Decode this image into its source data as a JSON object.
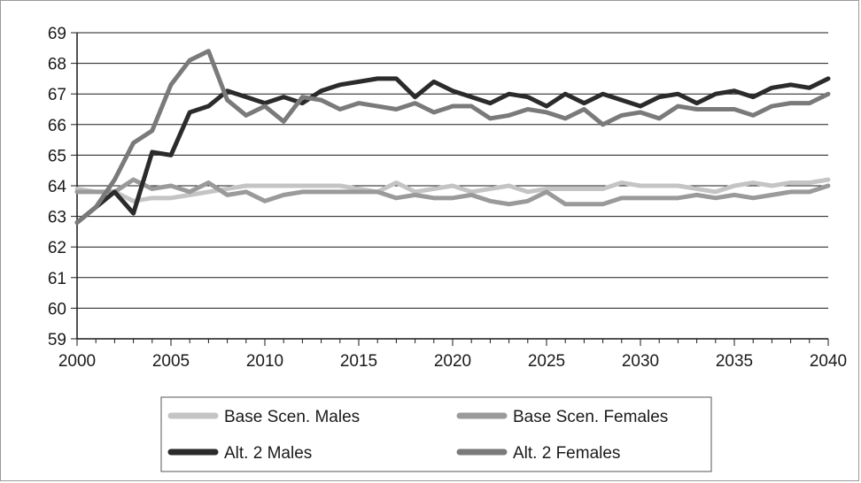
{
  "chart_data": {
    "type": "line",
    "title": "",
    "xlabel": "",
    "ylabel": "",
    "xlim": [
      2000,
      2040
    ],
    "ylim": [
      59,
      69
    ],
    "x_ticks": [
      2000,
      2005,
      2010,
      2015,
      2020,
      2025,
      2030,
      2035,
      2040
    ],
    "x_tick_labels": [
      "2000",
      "2005",
      "2010",
      "2015",
      "2020",
      "2025",
      "2030",
      "2035",
      "2040"
    ],
    "y_ticks": [
      59,
      60,
      61,
      62,
      63,
      64,
      65,
      66,
      67,
      68,
      69
    ],
    "y_tick_labels": [
      "59",
      "60",
      "61",
      "62",
      "63",
      "64",
      "65",
      "66",
      "67",
      "68",
      "69"
    ],
    "grid": "horizontal",
    "legend_position": "bottom",
    "x": [
      2000,
      2001,
      2002,
      2003,
      2004,
      2005,
      2006,
      2007,
      2008,
      2009,
      2010,
      2011,
      2012,
      2013,
      2014,
      2015,
      2016,
      2017,
      2018,
      2019,
      2020,
      2021,
      2022,
      2023,
      2024,
      2025,
      2026,
      2027,
      2028,
      2029,
      2030,
      2031,
      2032,
      2033,
      2034,
      2035,
      2036,
      2037,
      2038,
      2039,
      2040
    ],
    "series": [
      {
        "name": "Base Scen. Males",
        "color": "#c4c4c4",
        "values": [
          63.9,
          63.8,
          63.8,
          63.5,
          63.6,
          63.6,
          63.7,
          63.8,
          63.9,
          64.0,
          64.0,
          64.0,
          64.0,
          64.0,
          64.0,
          63.9,
          63.8,
          64.1,
          63.8,
          63.9,
          64.0,
          63.8,
          63.9,
          64.0,
          63.8,
          63.9,
          63.9,
          63.9,
          63.9,
          64.1,
          64.0,
          64.0,
          64.0,
          63.9,
          63.8,
          64.0,
          64.1,
          64.0,
          64.1,
          64.1,
          64.2
        ]
      },
      {
        "name": "Base Scen. Females",
        "color": "#9a9a9a",
        "values": [
          63.8,
          63.8,
          63.8,
          64.2,
          63.9,
          64.0,
          63.8,
          64.1,
          63.7,
          63.8,
          63.5,
          63.7,
          63.8,
          63.8,
          63.8,
          63.8,
          63.8,
          63.6,
          63.7,
          63.6,
          63.6,
          63.7,
          63.5,
          63.4,
          63.5,
          63.8,
          63.4,
          63.4,
          63.4,
          63.6,
          63.6,
          63.6,
          63.6,
          63.7,
          63.6,
          63.7,
          63.6,
          63.7,
          63.8,
          63.8,
          64.0
        ]
      },
      {
        "name": "Alt. 2 Males",
        "color": "#2b2b2b",
        "values": [
          62.8,
          63.3,
          63.8,
          63.1,
          65.1,
          65.0,
          66.4,
          66.6,
          67.1,
          66.9,
          66.7,
          66.9,
          66.7,
          67.1,
          67.3,
          67.4,
          67.5,
          67.5,
          66.9,
          67.4,
          67.1,
          66.9,
          66.7,
          67.0,
          66.9,
          66.6,
          67.0,
          66.7,
          67.0,
          66.8,
          66.6,
          66.9,
          67.0,
          66.7,
          67.0,
          67.1,
          66.9,
          67.2,
          67.3,
          67.2,
          67.5
        ]
      },
      {
        "name": "Alt. 2 Females",
        "color": "#7a7a7a",
        "values": [
          62.8,
          63.3,
          64.2,
          65.4,
          65.8,
          67.3,
          68.1,
          68.4,
          66.8,
          66.3,
          66.6,
          66.1,
          66.9,
          66.8,
          66.5,
          66.7,
          66.6,
          66.5,
          66.7,
          66.4,
          66.6,
          66.6,
          66.2,
          66.3,
          66.5,
          66.4,
          66.2,
          66.5,
          66.0,
          66.3,
          66.4,
          66.2,
          66.6,
          66.5,
          66.5,
          66.5,
          66.3,
          66.6,
          66.7,
          66.7,
          67.0
        ]
      }
    ]
  }
}
